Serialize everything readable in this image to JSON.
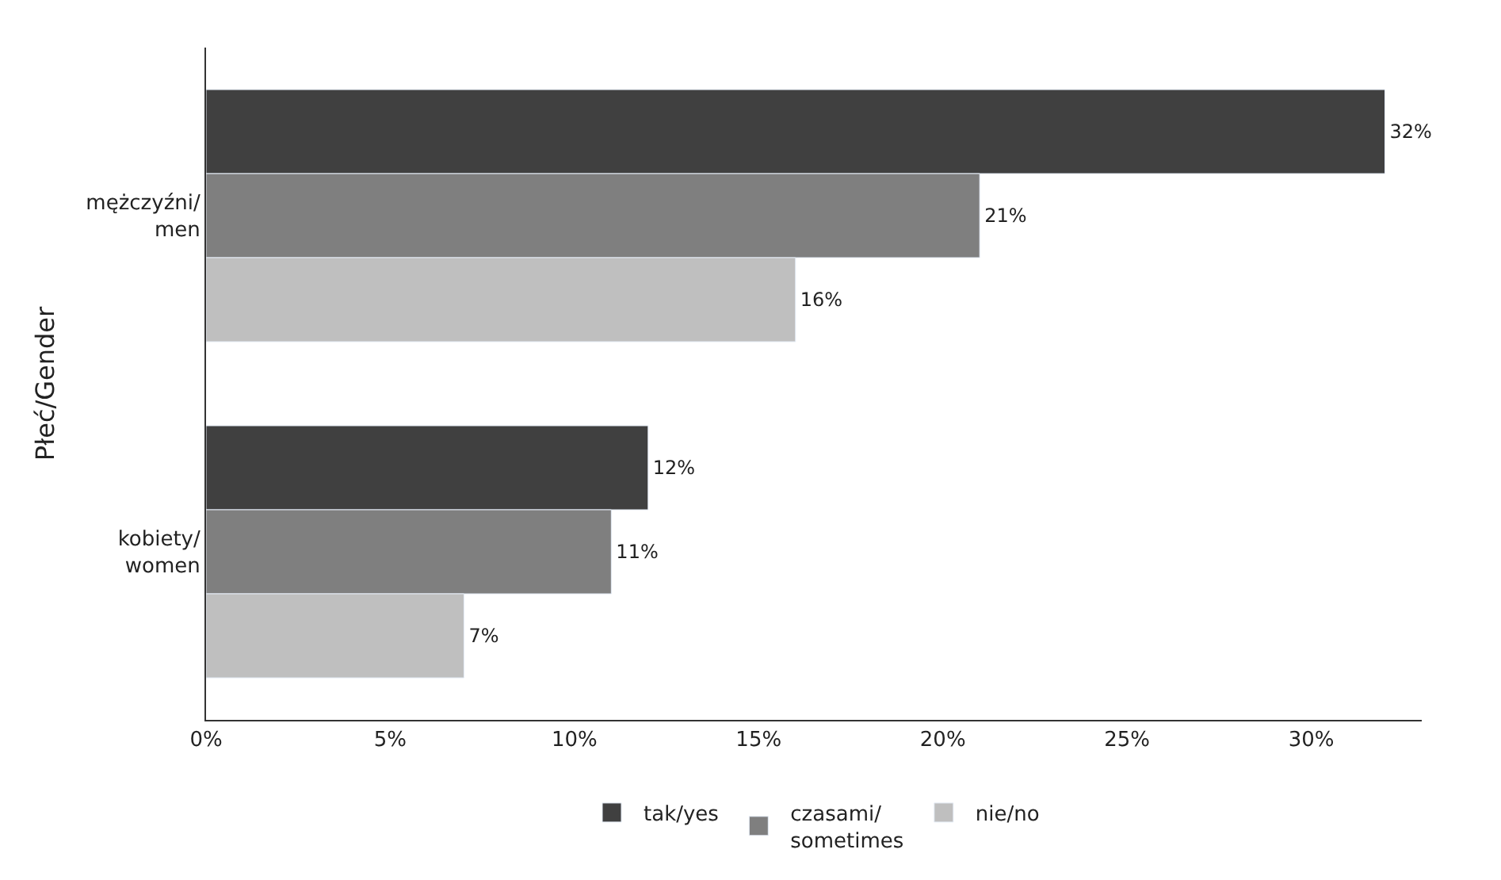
{
  "chart_data": {
    "type": "bar",
    "orientation": "horizontal",
    "ylabel": "Płeć/Gender",
    "categories": [
      "mężczyźni/\nmen",
      "kobiety/\nwomen"
    ],
    "series": [
      {
        "name": "tak/yes",
        "color": "#404040",
        "values": [
          32,
          12
        ],
        "value_labels": [
          "32%",
          "12%"
        ]
      },
      {
        "name": "czasami/\nsometimes",
        "color": "#7f7f7f",
        "values": [
          21,
          11
        ],
        "value_labels": [
          "21%",
          "11%"
        ]
      },
      {
        "name": "nie/no",
        "color": "#bfbfbf",
        "values": [
          16,
          7
        ],
        "value_labels": [
          "16%",
          "7%"
        ]
      }
    ],
    "xlim": [
      0,
      33
    ],
    "xticks": [
      {
        "value": 0,
        "label": "0%"
      },
      {
        "value": 5,
        "label": "5%"
      },
      {
        "value": 10,
        "label": "10%"
      },
      {
        "value": 15,
        "label": "15%"
      },
      {
        "value": 20,
        "label": "20%"
      },
      {
        "value": 25,
        "label": "25%"
      },
      {
        "value": 30,
        "label": "30%"
      }
    ],
    "legend": "bottom"
  }
}
